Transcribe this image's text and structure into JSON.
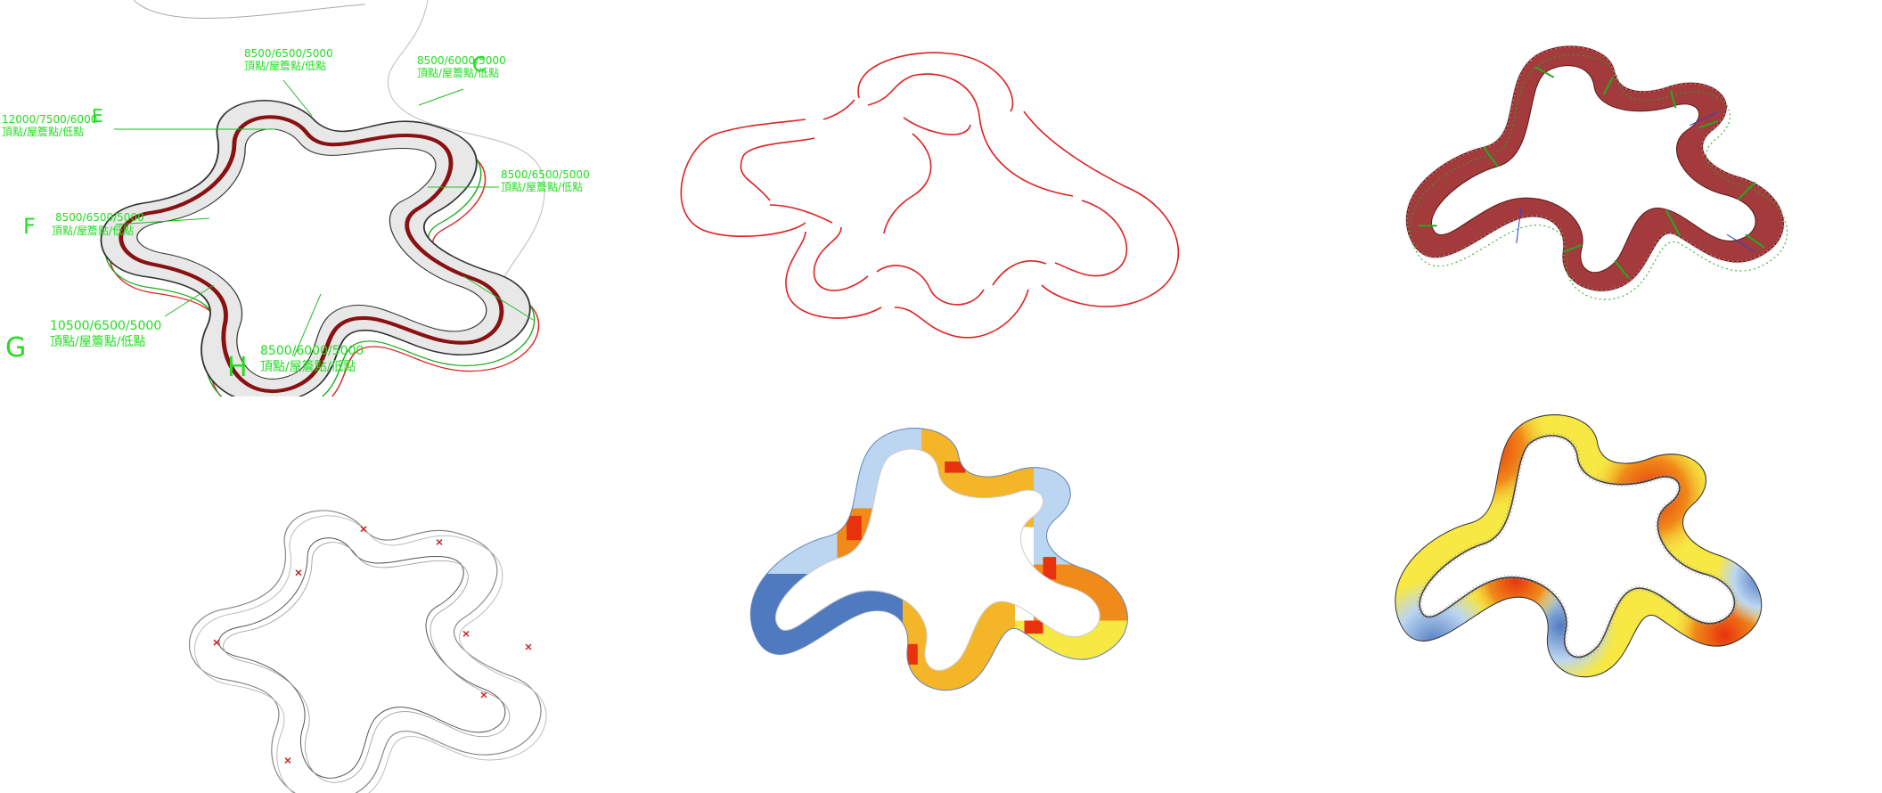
{
  "colors": {
    "accent_green": "#22dd22",
    "outline_red": "#e02020",
    "roof_dark_red": "#a33a3c",
    "rail_dark_red": "#8a1111",
    "heat_blue": "#4f7ac0",
    "heat_light_blue": "#bcd6f2",
    "heat_yellow": "#f7e844",
    "heat_gold": "#f5b528",
    "heat_orange": "#f08a18",
    "heat_red": "#e8320e"
  },
  "panels": [
    {
      "id": "axonometric-annotated",
      "description_icon": "roof-axonometric"
    },
    {
      "id": "plan-outline",
      "description_icon": "roof-plan-outline"
    },
    {
      "id": "structure-shaded",
      "description_icon": "roof-structure-view"
    },
    {
      "id": "wireframe",
      "description_icon": "roof-wireframe-view"
    },
    {
      "id": "color-zones",
      "description_icon": "roof-zone-map"
    },
    {
      "id": "heatmap",
      "description_icon": "roof-heatmap"
    }
  ],
  "annotations": [
    {
      "letter": "C",
      "line1": "8500/6000/5000",
      "line2": "頂點/屋簷點/低點"
    },
    {
      "letter": "",
      "line1": "8500/6500/5000",
      "line2": "頂點/屋簷點/低點"
    },
    {
      "letter": "E",
      "line1": "12000/7500/6000",
      "line2": "頂點/屋簷點/低點"
    },
    {
      "letter": "",
      "line1": "8500/6500/5000",
      "line2": "頂點/屋簷點/低點"
    },
    {
      "letter": "F",
      "line1": "8500/6500/5000",
      "line2": "頂點/屋簷點/低點"
    },
    {
      "letter": "G",
      "line1": "10500/6500/5000",
      "line2": "頂點/屋簷點/低點"
    },
    {
      "letter": "H",
      "line1": "8500/6000/5000",
      "line2": "頂點/屋簷點/低點"
    }
  ]
}
